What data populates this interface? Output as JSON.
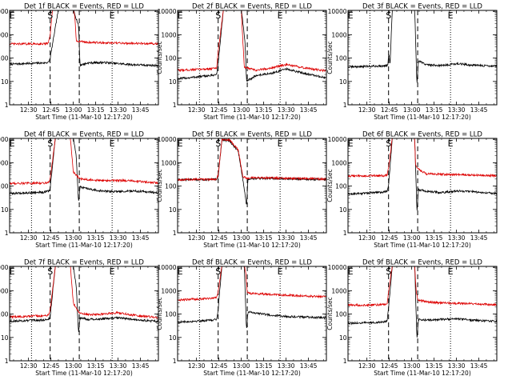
{
  "colors": {
    "events": "#000000",
    "lld": "#dd0000",
    "background": "#ffffff"
  },
  "shared": {
    "x_ticks": [
      "12:30",
      "12:45",
      "13:00",
      "13:15",
      "13:30",
      "13:45"
    ],
    "x_tick_minutes": [
      30,
      45,
      60,
      75,
      90,
      105
    ],
    "y_ticks": [
      "1",
      "10",
      "100",
      "1000",
      "10000"
    ],
    "y_tick_values": [
      1,
      10,
      100,
      1000,
      10000
    ],
    "xlabel": "Start Time (11-Mar-10 12:17:20)",
    "ylabel": "Counts/sec",
    "xlim_minutes": [
      17.33,
      117
    ],
    "ylim": [
      1,
      11000
    ],
    "yscale": "log",
    "markers": {
      "E_left": 19,
      "S": 44.5,
      "E_right": 86
    },
    "dotted_lines": [
      32,
      86
    ],
    "dashed_lines": [
      44.5,
      64
    ]
  },
  "chart_data": [
    {
      "type": "line",
      "title": "Det 1f BLACK = Events, RED = LLD",
      "series": [
        {
          "name": "BLACK = Events",
          "base": [
            [
              18,
              55
            ],
            [
              40,
              62
            ],
            [
              43.5,
              66
            ],
            [
              44.5,
              100
            ],
            [
              50,
              12000
            ],
            [
              60,
              12000
            ],
            [
              63.5,
              2500
            ],
            [
              64.5,
              50
            ],
            [
              70,
              62
            ],
            [
              80,
              65
            ],
            [
              90,
              58
            ],
            [
              100,
              52
            ],
            [
              117,
              48
            ]
          ]
        },
        {
          "name": "RED = LLD",
          "base": [
            [
              18,
              400
            ],
            [
              43,
              410
            ],
            [
              44.5,
              900
            ],
            [
              46,
              12000
            ],
            [
              60,
              12000
            ],
            [
              61,
              6000
            ],
            [
              62,
              550
            ],
            [
              70,
              470
            ],
            [
              85,
              440
            ],
            [
              100,
              430
            ],
            [
              117,
              410
            ]
          ]
        }
      ]
    },
    {
      "type": "line",
      "title": "Det 2f BLACK = Events, RED = LLD",
      "series": [
        {
          "name": "BLACK = Events",
          "base": [
            [
              18,
              13
            ],
            [
              40,
              18
            ],
            [
              43.5,
              20
            ],
            [
              44.5,
              60
            ],
            [
              48,
              12000
            ],
            [
              60,
              12000
            ],
            [
              62.5,
              500
            ],
            [
              63.5,
              10
            ],
            [
              70,
              18
            ],
            [
              80,
              22
            ],
            [
              90,
              34
            ],
            [
              100,
              24
            ],
            [
              117,
              14
            ]
          ]
        },
        {
          "name": "RED = LLD",
          "base": [
            [
              18,
              30
            ],
            [
              40,
              35
            ],
            [
              43.5,
              38
            ],
            [
              44.5,
              200
            ],
            [
              48,
              12000
            ],
            [
              60,
              12000
            ],
            [
              61,
              600
            ],
            [
              62,
              40
            ],
            [
              70,
              30
            ],
            [
              80,
              38
            ],
            [
              90,
              52
            ],
            [
              100,
              40
            ],
            [
              117,
              28
            ]
          ]
        }
      ]
    },
    {
      "type": "line",
      "title": "Det 3f BLACK = Events, RED = LLD",
      "series": [
        {
          "name": "BLACK = Events",
          "base": [
            [
              18,
              42
            ],
            [
              40,
              46
            ],
            [
              44,
              50
            ],
            [
              44.7,
              160
            ],
            [
              45.5,
              52
            ],
            [
              47,
              12000
            ],
            [
              62,
              12000
            ],
            [
              63.5,
              7
            ],
            [
              64.5,
              75
            ],
            [
              70,
              52
            ],
            [
              80,
              48
            ],
            [
              90,
              58
            ],
            [
              100,
              50
            ],
            [
              117,
              45
            ]
          ]
        }
      ]
    },
    {
      "type": "line",
      "title": "Det 4f BLACK = Events, RED = LLD",
      "series": [
        {
          "name": "BLACK = Events",
          "base": [
            [
              18,
              48
            ],
            [
              40,
              55
            ],
            [
              43.5,
              60
            ],
            [
              44.5,
              80
            ],
            [
              48,
              12000
            ],
            [
              60,
              12000
            ],
            [
              62,
              1800
            ],
            [
              63.5,
              20
            ],
            [
              64.5,
              90
            ],
            [
              70,
              75
            ],
            [
              80,
              60
            ],
            [
              90,
              58
            ],
            [
              100,
              62
            ],
            [
              117,
              52
            ]
          ]
        },
        {
          "name": "RED = LLD",
          "base": [
            [
              18,
              130
            ],
            [
              40,
              135
            ],
            [
              43.5,
              145
            ],
            [
              44.5,
              200
            ],
            [
              48,
              12000
            ],
            [
              58,
              12000
            ],
            [
              60,
              400
            ],
            [
              64,
              210
            ],
            [
              70,
              190
            ],
            [
              80,
              170
            ],
            [
              90,
              175
            ],
            [
              100,
              165
            ],
            [
              117,
              135
            ]
          ]
        }
      ]
    },
    {
      "type": "line",
      "title": "Det 5f BLACK = Events, RED = LLD",
      "series": [
        {
          "name": "BLACK = Events",
          "base": [
            [
              18,
              185
            ],
            [
              40,
              190
            ],
            [
              43.5,
              195
            ],
            [
              44.5,
              260
            ],
            [
              47,
              9000
            ],
            [
              52,
              9000
            ],
            [
              58,
              3000
            ],
            [
              61,
              200
            ],
            [
              63.5,
              15
            ],
            [
              64.5,
              200
            ],
            [
              70,
              210
            ],
            [
              80,
              215
            ],
            [
              90,
              205
            ],
            [
              100,
              200
            ],
            [
              117,
              190
            ]
          ]
        },
        {
          "name": "RED = LLD",
          "base": [
            [
              18,
              190
            ],
            [
              40,
              195
            ],
            [
              43.5,
              200
            ],
            [
              44.5,
              300
            ],
            [
              47,
              9500
            ],
            [
              52,
              9500
            ],
            [
              58,
              3500
            ],
            [
              61,
              250
            ],
            [
              64,
              220
            ],
            [
              70,
              230
            ],
            [
              80,
              225
            ],
            [
              90,
              215
            ],
            [
              100,
              210
            ],
            [
              117,
              200
            ]
          ]
        }
      ]
    },
    {
      "type": "line",
      "title": "Det 6f BLACK = Events, RED = LLD",
      "series": [
        {
          "name": "BLACK = Events",
          "base": [
            [
              18,
              45
            ],
            [
              40,
              55
            ],
            [
              43.5,
              60
            ],
            [
              44.5,
              100
            ],
            [
              47,
              12000
            ],
            [
              62,
              12000
            ],
            [
              63.5,
              8
            ],
            [
              64.5,
              70
            ],
            [
              70,
              60
            ],
            [
              80,
              52
            ],
            [
              90,
              62
            ],
            [
              100,
              58
            ],
            [
              117,
              48
            ]
          ]
        },
        {
          "name": "RED = LLD",
          "base": [
            [
              18,
              270
            ],
            [
              40,
              275
            ],
            [
              43.5,
              285
            ],
            [
              44.5,
              600
            ],
            [
              47,
              12000
            ],
            [
              62,
              12000
            ],
            [
              62.5,
              900
            ],
            [
              64,
              550
            ],
            [
              70,
              330
            ],
            [
              80,
              320
            ],
            [
              90,
              310
            ],
            [
              100,
              300
            ],
            [
              117,
              280
            ]
          ]
        }
      ]
    },
    {
      "type": "line",
      "title": "Det 7f BLACK = Events, RED = LLD",
      "series": [
        {
          "name": "BLACK = Events",
          "base": [
            [
              18,
              50
            ],
            [
              40,
              55
            ],
            [
              43.5,
              60
            ],
            [
              44.5,
              80
            ],
            [
              48,
              12000
            ],
            [
              60,
              12000
            ],
            [
              62,
              1500
            ],
            [
              63.5,
              15
            ],
            [
              64.5,
              70
            ],
            [
              70,
              60
            ],
            [
              80,
              62
            ],
            [
              90,
              70
            ],
            [
              100,
              58
            ],
            [
              117,
              48
            ]
          ]
        },
        {
          "name": "RED = LLD",
          "base": [
            [
              18,
              75
            ],
            [
              40,
              85
            ],
            [
              43.5,
              90
            ],
            [
              44.5,
              150
            ],
            [
              48,
              12000
            ],
            [
              58,
              12000
            ],
            [
              60,
              300
            ],
            [
              64,
              110
            ],
            [
              70,
              95
            ],
            [
              80,
              100
            ],
            [
              90,
              115
            ],
            [
              100,
              90
            ],
            [
              117,
              70
            ]
          ]
        }
      ]
    },
    {
      "type": "line",
      "title": "Det 8f BLACK = Events, RED = LLD",
      "series": [
        {
          "name": "BLACK = Events",
          "base": [
            [
              18,
              45
            ],
            [
              40,
              55
            ],
            [
              43.5,
              60
            ],
            [
              44.5,
              160
            ],
            [
              47,
              12000
            ],
            [
              62,
              12000
            ],
            [
              63.5,
              20
            ],
            [
              64.5,
              130
            ],
            [
              70,
              110
            ],
            [
              80,
              90
            ],
            [
              90,
              80
            ],
            [
              100,
              75
            ],
            [
              117,
              70
            ]
          ]
        },
        {
          "name": "RED = LLD",
          "base": [
            [
              18,
              400
            ],
            [
              40,
              480
            ],
            [
              43.5,
              520
            ],
            [
              44.5,
              900
            ],
            [
              47,
              12000
            ],
            [
              62,
              12000
            ],
            [
              63,
              6000
            ],
            [
              64,
              800
            ],
            [
              70,
              750
            ],
            [
              80,
              700
            ],
            [
              90,
              650
            ],
            [
              100,
              600
            ],
            [
              117,
              550
            ]
          ]
        }
      ]
    },
    {
      "type": "line",
      "title": "Det 9f BLACK = Events, RED = LLD",
      "series": [
        {
          "name": "BLACK = Events",
          "base": [
            [
              18,
              40
            ],
            [
              40,
              45
            ],
            [
              43.5,
              50
            ],
            [
              44.5,
              170
            ],
            [
              47,
              12000
            ],
            [
              62,
              12000
            ],
            [
              63.5,
              8
            ],
            [
              64.5,
              60
            ],
            [
              70,
              55
            ],
            [
              80,
              60
            ],
            [
              90,
              62
            ],
            [
              100,
              55
            ],
            [
              117,
              48
            ]
          ]
        },
        {
          "name": "RED = LLD",
          "base": [
            [
              18,
              240
            ],
            [
              40,
              250
            ],
            [
              43.5,
              260
            ],
            [
              44.5,
              900
            ],
            [
              47,
              12000
            ],
            [
              62,
              12000
            ],
            [
              63,
              1000
            ],
            [
              64,
              400
            ],
            [
              70,
              330
            ],
            [
              80,
              300
            ],
            [
              90,
              290
            ],
            [
              100,
              280
            ],
            [
              117,
              250
            ]
          ]
        }
      ]
    }
  ]
}
